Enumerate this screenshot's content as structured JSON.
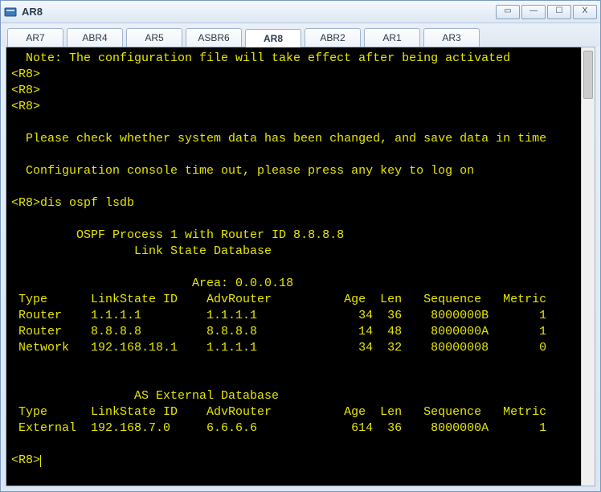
{
  "window": {
    "title": "AR8"
  },
  "controls": {
    "extra": "▭",
    "min": "—",
    "max": "☐",
    "close": "X"
  },
  "tabs": [
    {
      "label": "AR7",
      "active": false
    },
    {
      "label": "ABR4",
      "active": false
    },
    {
      "label": "AR5",
      "active": false
    },
    {
      "label": "ASBR6",
      "active": false
    },
    {
      "label": "AR8",
      "active": true
    },
    {
      "label": "ABR2",
      "active": false
    },
    {
      "label": "AR1",
      "active": false
    },
    {
      "label": "AR3",
      "active": false
    }
  ],
  "terminal": {
    "text_color": "#e6e600",
    "background": "#000000",
    "lines": [
      "  Note: The configuration file will take effect after being activated",
      "<R8>",
      "<R8>",
      "<R8>",
      "",
      "  Please check whether system data has been changed, and save data in time",
      "",
      "  Configuration console time out, please press any key to log on",
      "",
      "<R8>dis ospf lsdb",
      "",
      "\t OSPF Process 1 with Router ID 8.8.8.8",
      "\t\t Link State Database",
      "",
      "\t\t         Area: 0.0.0.18",
      " Type      LinkState ID    AdvRouter          Age  Len   Sequence   Metric",
      " Router    1.1.1.1         1.1.1.1              34  36    8000000B       1",
      " Router    8.8.8.8         8.8.8.8              14  48    8000000A       1",
      " Network   192.168.18.1    1.1.1.1              34  32    80000008       0",
      "",
      "",
      "\t\t AS External Database",
      " Type      LinkState ID    AdvRouter          Age  Len   Sequence   Metric",
      " External  192.168.7.0     6.6.6.6             614  36    8000000A       1",
      "",
      "<R8>"
    ]
  }
}
